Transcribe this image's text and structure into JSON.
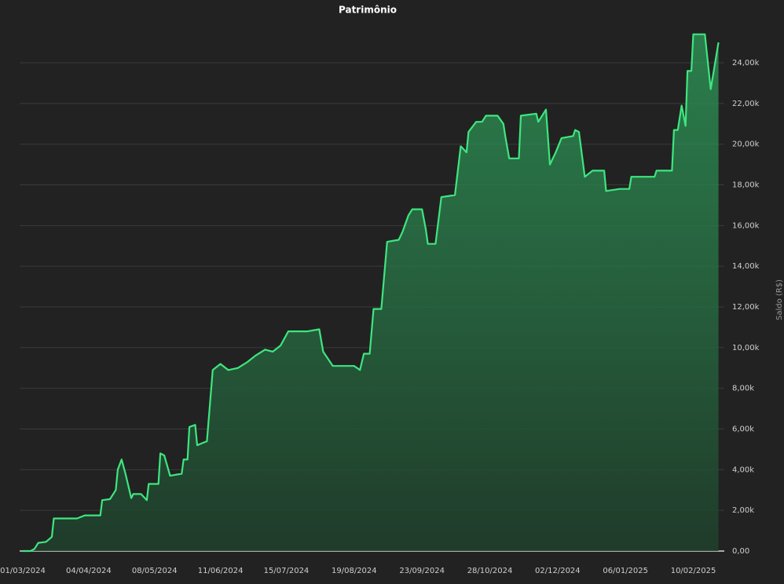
{
  "chart_data": {
    "type": "area",
    "title": "Patrimônio",
    "y_label": "Saldo (R$)",
    "color": "#3ee67f",
    "grid": true,
    "xlim": [
      "2024-03-01",
      "2025-02-26"
    ],
    "xticks": [
      {
        "value": "2024-03-01",
        "label": "01/03/2024"
      },
      {
        "value": "2024-04-04",
        "label": "04/04/2024"
      },
      {
        "value": "2024-05-08",
        "label": "08/05/2024"
      },
      {
        "value": "2024-06-11",
        "label": "11/06/2024"
      },
      {
        "value": "2024-07-15",
        "label": "15/07/2024"
      },
      {
        "value": "2024-08-19",
        "label": "19/08/2024"
      },
      {
        "value": "2024-09-23",
        "label": "23/09/2024"
      },
      {
        "value": "2024-10-28",
        "label": "28/10/2024"
      },
      {
        "value": "2024-12-02",
        "label": "02/12/2024"
      },
      {
        "value": "2025-01-06",
        "label": "06/01/2025"
      },
      {
        "value": "2025-02-10",
        "label": "10/02/2025"
      }
    ],
    "ylim": [
      0,
      26000
    ],
    "yticks": [
      {
        "value": 0,
        "label": "0,00"
      },
      {
        "value": 2000,
        "label": "2,00k"
      },
      {
        "value": 4000,
        "label": "4,00k"
      },
      {
        "value": 6000,
        "label": "6,00k"
      },
      {
        "value": 8000,
        "label": "8,00k"
      },
      {
        "value": 10000,
        "label": "10,00k"
      },
      {
        "value": 12000,
        "label": "12,00k"
      },
      {
        "value": 14000,
        "label": "14,00k"
      },
      {
        "value": 16000,
        "label": "16,00k"
      },
      {
        "value": 18000,
        "label": "18,00k"
      },
      {
        "value": 20000,
        "label": "20,00k"
      },
      {
        "value": 22000,
        "label": "22,00k"
      },
      {
        "value": 24000,
        "label": "24,00k"
      }
    ],
    "x": [
      "2024-03-01",
      "2024-03-05",
      "2024-03-07",
      "2024-03-09",
      "2024-03-13",
      "2024-03-16",
      "2024-03-17",
      "2024-03-29",
      "2024-04-02",
      "2024-04-10",
      "2024-04-11",
      "2024-04-15",
      "2024-04-18",
      "2024-04-19",
      "2024-04-21",
      "2024-04-23",
      "2024-04-26",
      "2024-04-27",
      "2024-05-01",
      "2024-05-04",
      "2024-05-05",
      "2024-05-10",
      "2024-05-11",
      "2024-05-13",
      "2024-05-16",
      "2024-05-22",
      "2024-05-23",
      "2024-05-25",
      "2024-05-26",
      "2024-05-29",
      "2024-05-30",
      "2024-06-04",
      "2024-06-07",
      "2024-06-11",
      "2024-06-15",
      "2024-06-20",
      "2024-06-25",
      "2024-06-29",
      "2024-07-04",
      "2024-07-08",
      "2024-07-12",
      "2024-07-16",
      "2024-07-26",
      "2024-08-01",
      "2024-08-03",
      "2024-08-08",
      "2024-08-19",
      "2024-08-22",
      "2024-08-24",
      "2024-08-27",
      "2024-08-29",
      "2024-09-02",
      "2024-09-05",
      "2024-09-11",
      "2024-09-13",
      "2024-09-16",
      "2024-09-18",
      "2024-09-23",
      "2024-09-25",
      "2024-09-26",
      "2024-09-30",
      "2024-10-03",
      "2024-10-10",
      "2024-10-13",
      "2024-10-16",
      "2024-10-17",
      "2024-10-21",
      "2024-10-24",
      "2024-10-26",
      "2024-11-01",
      "2024-11-04",
      "2024-11-05",
      "2024-11-07",
      "2024-11-12",
      "2024-11-13",
      "2024-11-21",
      "2024-11-22",
      "2024-11-26",
      "2024-11-28",
      "2024-12-01",
      "2024-12-04",
      "2024-12-10",
      "2024-12-11",
      "2024-12-13",
      "2024-12-16",
      "2024-12-20",
      "2024-12-26",
      "2024-12-27",
      "2025-01-03",
      "2025-01-08",
      "2025-01-09",
      "2025-01-21",
      "2025-01-22",
      "2025-01-30",
      "2025-01-31",
      "2025-02-02",
      "2025-02-04",
      "2025-02-06",
      "2025-02-07",
      "2025-02-09",
      "2025-02-10",
      "2025-02-16",
      "2025-02-19",
      "2025-02-23"
    ],
    "values": [
      0,
      0,
      100,
      400,
      450,
      700,
      1600,
      1600,
      1750,
      1750,
      2500,
      2550,
      3000,
      4000,
      4500,
      3800,
      2600,
      2800,
      2800,
      2500,
      3300,
      3300,
      4800,
      4700,
      3700,
      3800,
      4500,
      4500,
      6100,
      6200,
      5200,
      5400,
      8900,
      9200,
      8900,
      9000,
      9300,
      9600,
      9900,
      9800,
      10100,
      10800,
      10800,
      10900,
      9800,
      9100,
      9100,
      8900,
      9700,
      9700,
      11900,
      11900,
      15200,
      15300,
      15700,
      16500,
      16800,
      16800,
      15800,
      15100,
      15100,
      17400,
      17500,
      19900,
      19600,
      20600,
      21100,
      21100,
      21400,
      21400,
      21000,
      20400,
      19300,
      19300,
      21400,
      21500,
      21100,
      21700,
      19000,
      19600,
      20300,
      20400,
      20700,
      20600,
      18400,
      18700,
      18700,
      17700,
      17800,
      17800,
      18400,
      18400,
      18700,
      18700,
      20700,
      20700,
      21900,
      20900,
      23600,
      23600,
      25400,
      25400,
      22700,
      25000
    ]
  }
}
